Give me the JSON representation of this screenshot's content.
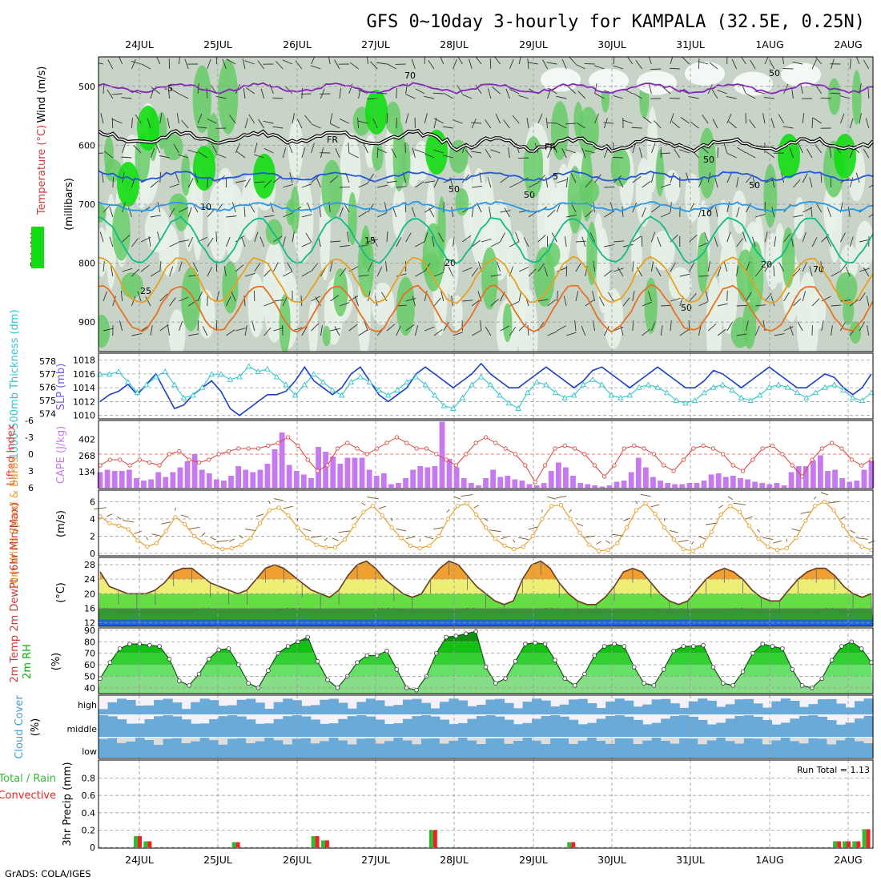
{
  "title": "GFS 0~10day 3-hourly for KAMPALA (32.5E, 0.25N)",
  "footer": "GrADS: COLA/IGES",
  "colors": {
    "grid": "#9a9a9a",
    "rh_dark": "#11dd11",
    "rh_mid": "#66cc66",
    "rh_light": "#c8d4c8",
    "rh_pale": "#e8f2e8",
    "slp": "#1a3fc8",
    "thickness": "#33c4cc",
    "cape_bar": "#c77af0",
    "lifted": "#e0403a",
    "wind_speed": "#e8a030",
    "barb": "#7a5020",
    "cloud": "#6aaad8",
    "precip_total": "#33bb33",
    "precip_conv": "#ee2222"
  },
  "chart_data": {
    "type": "meteogram",
    "x_dates": [
      "24JUL",
      "25JUL",
      "26JUL",
      "27JUL",
      "28JUL",
      "29JUL",
      "30JUL",
      "31JUL",
      "1AUG",
      "2AUG"
    ],
    "panels": {
      "upper_air": {
        "ylabel_wind": "Wind (m/s)",
        "ylabel_temp": "Temperature (°C)",
        "ylabel_rh": "RH (%)",
        "ylabel_axis": "(millibars)",
        "yticks": [
          "500",
          "600",
          "700",
          "800",
          "900"
        ],
        "ylim": [
          450,
          950
        ],
        "contours": [
          {
            "label": "-5",
            "color": "#8822bb",
            "level": -5
          },
          {
            "label": "FR",
            "color": "#000000",
            "level": 0
          },
          {
            "label": "5",
            "color": "#2255dd",
            "level": 5
          },
          {
            "label": "10",
            "color": "#2299ee",
            "level": 10
          },
          {
            "label": "15",
            "color": "#11bb88",
            "level": 15
          },
          {
            "label": "20",
            "color": "#e8a020",
            "level": 20
          },
          {
            "label": "25",
            "color": "#e87020",
            "level": 25
          }
        ],
        "rh_labels": [
          "70",
          "50",
          "50",
          "50",
          "50",
          "50",
          "70",
          "50"
        ]
      },
      "slp_thickness": {
        "ylabel_left": "1000-500mb Thickness (dm)",
        "ylabel_right": "SLP (mb)",
        "yticks_left": [
          "574",
          "575",
          "576",
          "577",
          "578"
        ],
        "yticks_right": [
          "1010",
          "1012",
          "1014",
          "1016",
          "1018"
        ],
        "slp": [
          1012,
          1013,
          1013.5,
          1014.5,
          1013,
          1014.5,
          1016,
          1013.5,
          1011,
          1011.5,
          1013,
          1014,
          1015,
          1013.5,
          1011,
          1010,
          1011,
          1012,
          1013,
          1013,
          1013.5,
          1015,
          1017,
          1015,
          1014,
          1013,
          1014,
          1016,
          1017,
          1015,
          1013,
          1012,
          1013,
          1014,
          1016,
          1017,
          1016,
          1015,
          1014,
          1015,
          1016,
          1017.5,
          1016,
          1015,
          1014,
          1014,
          1015,
          1016,
          1017,
          1016,
          1015,
          1014,
          1015,
          1016.5,
          1017,
          1016,
          1015,
          1014,
          1015,
          1016,
          1017,
          1016,
          1015,
          1014,
          1014,
          1015,
          1016.5,
          1016,
          1015,
          1014,
          1015,
          1016,
          1017,
          1016,
          1015,
          1014,
          1014,
          1015,
          1016,
          1015.5,
          1014,
          1013,
          1014,
          1016
        ],
        "thickness": [
          577,
          577,
          577.2,
          576.4,
          575.6,
          576.2,
          576.8,
          577.2,
          576.2,
          575.2,
          575.4,
          576,
          577,
          577,
          576.6,
          576.8,
          577.6,
          577.2,
          577.4,
          576.8,
          576.2,
          575.4,
          576.2,
          577,
          576.4,
          575.8,
          575.4,
          576.4,
          576.8,
          576.4,
          575.8,
          575.4,
          575.8,
          576.4,
          576.8,
          576.2,
          575.4,
          574.6,
          574.4,
          575.2,
          576.2,
          576.8,
          576.2,
          575.4,
          574.8,
          574.4,
          575.6,
          576.4,
          576.2,
          575.6,
          575.2,
          575.4,
          576.2,
          576.6,
          576.2,
          575.4,
          575.2,
          575.4,
          576,
          576.2,
          576,
          575.6,
          575,
          574.8,
          575,
          575.6,
          576,
          576.2,
          575.8,
          575.2,
          575,
          575.4,
          576,
          576.2,
          576,
          575.6,
          575.2,
          575.6,
          576,
          576.2,
          575.8,
          575.2,
          575,
          575.6
        ]
      },
      "cape_li": {
        "ylabel_left": "Lifted Index",
        "ylabel_right": "CAPE (J/kg)",
        "yticks_left": [
          "-6",
          "-3",
          "0",
          "3",
          "6"
        ],
        "yticks_right": [
          "134",
          "268",
          "402"
        ],
        "cape": [
          130,
          150,
          140,
          140,
          150,
          80,
          60,
          70,
          130,
          90,
          130,
          170,
          220,
          280,
          150,
          120,
          70,
          60,
          100,
          180,
          150,
          130,
          150,
          200,
          320,
          460,
          190,
          140,
          110,
          80,
          340,
          300,
          260,
          200,
          250,
          250,
          250,
          150,
          100,
          120,
          30,
          40,
          80,
          150,
          180,
          170,
          180,
          550,
          240,
          170,
          80,
          40,
          20,
          80,
          150,
          90,
          100,
          70,
          60,
          30,
          20,
          40,
          140,
          210,
          170,
          100,
          40,
          30,
          20,
          10,
          20,
          50,
          60,
          130,
          250,
          170,
          90,
          60,
          40,
          30,
          30,
          40,
          40,
          60,
          110,
          120,
          90,
          100,
          80,
          70,
          50,
          40,
          30,
          40,
          20,
          130,
          180,
          180,
          230,
          270,
          140,
          150,
          80,
          50,
          60,
          150,
          230
        ],
        "li": [
          2,
          1,
          1,
          2,
          1,
          1.5,
          2,
          0,
          -0.5,
          1,
          1.5,
          1,
          0,
          -0.5,
          -1,
          -1,
          -1,
          -1.5,
          -2,
          -3,
          -1.5,
          1,
          3,
          2,
          -1,
          -2,
          -1,
          0,
          -1,
          -2,
          -3,
          -2,
          -1,
          -1,
          0,
          1,
          2,
          0,
          -2,
          -3,
          -2,
          -1,
          0,
          2,
          5,
          2,
          -1,
          -1.5,
          -1,
          0,
          2,
          4,
          2,
          -1,
          -1.5,
          -1,
          0,
          2,
          3,
          1,
          -1,
          -1.5,
          -1,
          0,
          2,
          3,
          1,
          -1,
          -1.5,
          0,
          2,
          4,
          1,
          -1,
          -2,
          -1,
          1,
          2,
          1
        ]
      },
      "wind10m": {
        "ylabel": "10m Wind Speed & Barbs",
        "yunit": "(m/s)",
        "yticks": [
          "0",
          "2",
          "4",
          "6"
        ],
        "ylim": [
          0,
          6.5
        ],
        "speed": [
          4.3,
          3.5,
          3.2,
          2.8,
          1.5,
          0.8,
          1.2,
          2.6,
          4.2,
          3.4,
          2.0,
          1.3,
          0.8,
          0.5,
          0.6,
          1.0,
          1.8,
          3.5,
          5.0,
          5.3,
          4.4,
          3.0,
          1.8,
          1.0,
          0.7,
          0.7,
          1.6,
          3.2,
          4.8,
          5.5,
          4.4,
          3.0,
          1.8,
          0.9,
          0.6,
          0.9,
          2.0,
          4.0,
          5.5,
          5.8,
          4.5,
          3.0,
          1.7,
          0.9,
          0.5,
          0.8,
          2.0,
          4.0,
          5.5,
          5.6,
          4.0,
          2.4,
          1.0,
          0.3,
          0.4,
          1.2,
          3.0,
          5.0,
          5.8,
          4.6,
          3.0,
          1.6,
          0.5,
          0.3,
          0.9,
          2.5,
          4.5,
          5.5,
          4.8,
          3.2,
          1.7,
          0.8,
          0.4,
          0.6,
          1.8,
          3.8,
          5.5,
          6.0,
          5.0,
          3.2,
          1.6,
          0.8,
          0.4
        ]
      },
      "temp2m": {
        "ylabel": "2m Temp 2m DewPt (6hr Min/Max)",
        "yunit": "(°C)",
        "yticks": [
          "12",
          "16",
          "20",
          "24",
          "28"
        ],
        "ylim": [
          11,
          30
        ],
        "temp": [
          26,
          22,
          21,
          20,
          20,
          20,
          21,
          23,
          26,
          27,
          27,
          25,
          23,
          22,
          21,
          20,
          21,
          24,
          27,
          28,
          27,
          25,
          23,
          21,
          20,
          19,
          21,
          25,
          28,
          29,
          27,
          24,
          22,
          20,
          19,
          20,
          24,
          27,
          29,
          28,
          25,
          22,
          20,
          18,
          17,
          18,
          24,
          28,
          29,
          27,
          23,
          20,
          18,
          17,
          17,
          19,
          22,
          26,
          27,
          26,
          23,
          20,
          18,
          17,
          18,
          21,
          24,
          26,
          27,
          26,
          24,
          21,
          19,
          18,
          18,
          21,
          24,
          26,
          27,
          27,
          25,
          22,
          20,
          19,
          20
        ],
        "dewpt": [
          16,
          16,
          15,
          15,
          15,
          15,
          15,
          15,
          15,
          15,
          15,
          16,
          16,
          15,
          15,
          15,
          15,
          15,
          15,
          15,
          16,
          16,
          16,
          15,
          15,
          15,
          15,
          15,
          15,
          15,
          16,
          16,
          16,
          15,
          15,
          15,
          15,
          15,
          15,
          15,
          16,
          16,
          15,
          15,
          15,
          15,
          15,
          15,
          16,
          16,
          16,
          15,
          15,
          15,
          15,
          15,
          15,
          15,
          15,
          15,
          16,
          15,
          15,
          15,
          15,
          15,
          15,
          15,
          15,
          16,
          16,
          15,
          15,
          15,
          15,
          15,
          15,
          15,
          15,
          16,
          16,
          15,
          15,
          15,
          15
        ]
      },
      "rh2m": {
        "ylabel": "2m RH",
        "yunit": "(%)",
        "yticks": [
          "40",
          "50",
          "60",
          "70",
          "80",
          "90"
        ],
        "ylim": [
          35,
          90
        ],
        "rh": [
          48,
          62,
          74,
          78,
          78,
          77,
          76,
          65,
          46,
          42,
          52,
          65,
          73,
          74,
          60,
          44,
          40,
          55,
          70,
          76,
          80,
          84,
          63,
          47,
          40,
          50,
          62,
          68,
          68,
          72,
          56,
          40,
          38,
          50,
          70,
          84,
          85,
          87,
          89,
          58,
          44,
          48,
          63,
          78,
          79,
          78,
          64,
          48,
          42,
          52,
          68,
          76,
          78,
          76,
          58,
          44,
          42,
          56,
          72,
          76,
          76,
          77,
          58,
          44,
          42,
          54,
          70,
          78,
          76,
          74,
          56,
          42,
          40,
          48,
          64,
          76,
          80,
          74,
          62
        ]
      },
      "cloud": {
        "ylabel": "Cloud Cover",
        "yunit": "(%)",
        "levels": [
          "high",
          "middle",
          "low"
        ]
      },
      "precip": {
        "ylabel_total": "Total / Rain",
        "ylabel_conv": "Convective",
        "ylabel": "3hr Precip (mm)",
        "yticks": [
          "0",
          "0.2",
          "0.4",
          "0.6",
          "0.8"
        ],
        "ylim": [
          0,
          1.0
        ],
        "run_total_label": "Run Total = 1.13",
        "bars": [
          {
            "date_index": 0.0,
            "x_frac": 0.0,
            "value": 0.13
          },
          {
            "date_index": 0.0,
            "x_frac": 0.125,
            "value": 0.07
          },
          {
            "date_index": 1.0,
            "x_frac": 0.25,
            "value": 0.06
          },
          {
            "date_index": 2.0,
            "x_frac": 0.25,
            "value": 0.13
          },
          {
            "date_index": 2.0,
            "x_frac": 0.375,
            "value": 0.08
          },
          {
            "date_index": 3.0,
            "x_frac": 0.75,
            "value": 0.2
          },
          {
            "date_index": 5.0,
            "x_frac": 0.5,
            "value": 0.06
          },
          {
            "date_index": 8.0,
            "x_frac": 0.875,
            "value": 0.07
          },
          {
            "date_index": 9.0,
            "x_frac": 0.0,
            "value": 0.07
          },
          {
            "date_index": 9.0,
            "x_frac": 0.125,
            "value": 0.07
          },
          {
            "date_index": 9.0,
            "x_frac": 0.25,
            "value": 0.21
          }
        ]
      }
    }
  }
}
